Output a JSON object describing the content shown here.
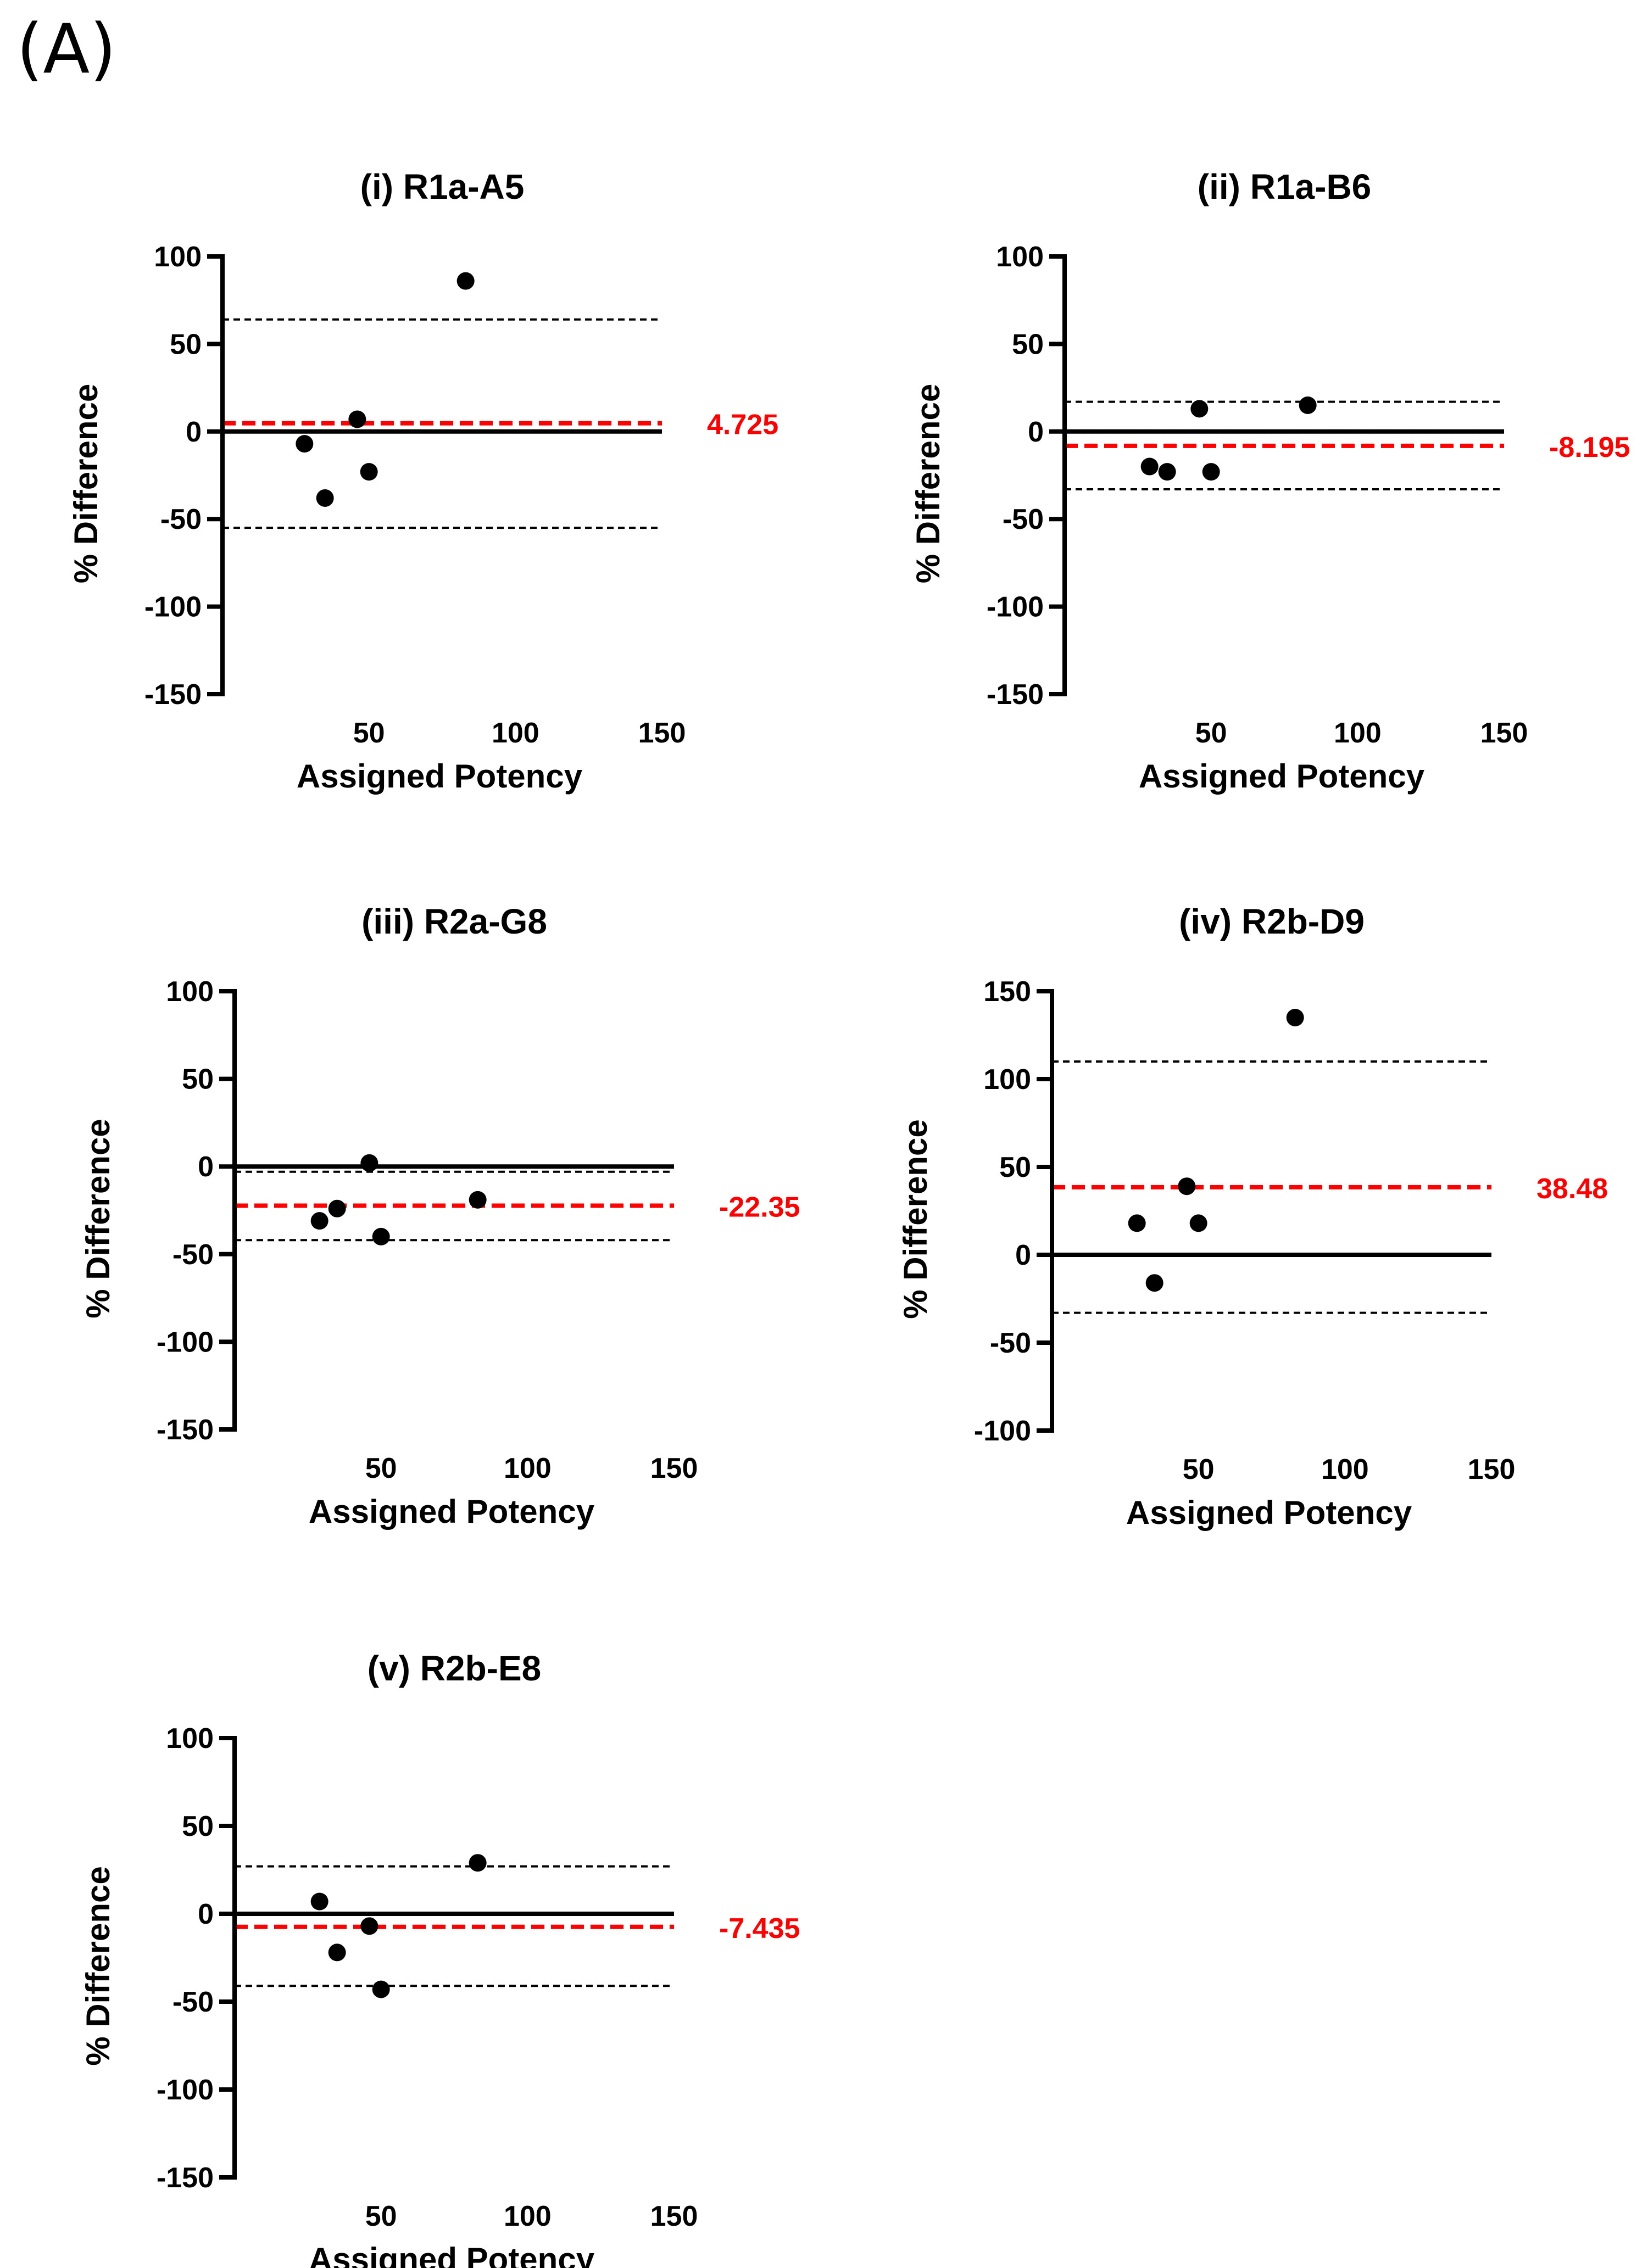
{
  "figure": {
    "panel_label": "(A)"
  },
  "chart_data": [
    {
      "type": "scatter",
      "title": "(i) R1a-A5",
      "xlabel": "Assigned Potency",
      "ylabel": "% Difference",
      "xlim": [
        0,
        150
      ],
      "ylim": [
        -150,
        100
      ],
      "xticks": [
        50,
        100,
        150
      ],
      "xtick_labels": [
        "50",
        "100",
        "150"
      ],
      "yticks": [
        100,
        50,
        0,
        -50,
        -100,
        -150
      ],
      "ytick_labels": [
        "100",
        "50",
        "0",
        "-50",
        "-100",
        "-150"
      ],
      "points": [
        {
          "x": 28,
          "y": -7
        },
        {
          "x": 35,
          "y": -38
        },
        {
          "x": 46,
          "y": 7
        },
        {
          "x": 50,
          "y": -23
        },
        {
          "x": 83,
          "y": 86
        }
      ],
      "bias": 4.725,
      "bias_label": "4.725",
      "loa_upper": 64,
      "loa_lower": -55,
      "colors": {
        "bias": "#ff0000",
        "points": "#000000",
        "limits": "#000000"
      }
    },
    {
      "type": "scatter",
      "title": "(ii) R1a-B6",
      "xlabel": "Assigned Potency",
      "ylabel": "% Difference",
      "xlim": [
        0,
        150
      ],
      "ylim": [
        -150,
        100
      ],
      "xticks": [
        50,
        100,
        150
      ],
      "xtick_labels": [
        "50",
        "100",
        "150"
      ],
      "yticks": [
        100,
        50,
        0,
        -50,
        -100,
        -150
      ],
      "ytick_labels": [
        "100",
        "50",
        "0",
        "-50",
        "-100",
        "-150"
      ],
      "points": [
        {
          "x": 29,
          "y": -20
        },
        {
          "x": 35,
          "y": -23
        },
        {
          "x": 46,
          "y": 13
        },
        {
          "x": 50,
          "y": -23
        },
        {
          "x": 83,
          "y": 15
        }
      ],
      "bias": -8.195,
      "bias_label": "-8.195",
      "loa_upper": 17,
      "loa_lower": -33,
      "colors": {
        "bias": "#ff0000",
        "points": "#000000",
        "limits": "#000000"
      }
    },
    {
      "type": "scatter",
      "title": "(iii) R2a-G8",
      "xlabel": "Assigned Potency",
      "ylabel": "% Difference",
      "xlim": [
        0,
        150
      ],
      "ylim": [
        -150,
        100
      ],
      "xticks": [
        50,
        100,
        150
      ],
      "xtick_labels": [
        "50",
        "100",
        "150"
      ],
      "yticks": [
        100,
        50,
        0,
        -50,
        -100,
        -150
      ],
      "ytick_labels": [
        "100",
        "50",
        "0",
        "-50",
        "-100",
        "-150"
      ],
      "points": [
        {
          "x": 29,
          "y": -31
        },
        {
          "x": 35,
          "y": -24
        },
        {
          "x": 46,
          "y": 2
        },
        {
          "x": 50,
          "y": -40
        },
        {
          "x": 83,
          "y": -19
        }
      ],
      "bias": -22.35,
      "bias_label": "-22.35",
      "loa_upper": -3,
      "loa_lower": -42,
      "colors": {
        "bias": "#ff0000",
        "points": "#000000",
        "limits": "#000000"
      }
    },
    {
      "type": "scatter",
      "title": "(iv) R2b-D9",
      "xlabel": "Assigned Potency",
      "ylabel": "% Difference",
      "xlim": [
        0,
        150
      ],
      "ylim": [
        -100,
        150
      ],
      "xticks": [
        50,
        100,
        150
      ],
      "xtick_labels": [
        "50",
        "100",
        "150"
      ],
      "yticks": [
        150,
        100,
        50,
        0,
        -50,
        -100
      ],
      "ytick_labels": [
        "150",
        "100",
        "50",
        "0",
        "-50",
        "-100"
      ],
      "points": [
        {
          "x": 29,
          "y": 18
        },
        {
          "x": 35,
          "y": -16
        },
        {
          "x": 46,
          "y": 39
        },
        {
          "x": 50,
          "y": 18
        },
        {
          "x": 83,
          "y": 135
        }
      ],
      "bias": 38.48,
      "bias_label": "38.48",
      "loa_upper": 110,
      "loa_lower": -33,
      "colors": {
        "bias": "#ff0000",
        "points": "#000000",
        "limits": "#000000"
      }
    },
    {
      "type": "scatter",
      "title": "(v) R2b-E8",
      "xlabel": "Assigned Potency",
      "ylabel": "% Difference",
      "xlim": [
        0,
        150
      ],
      "ylim": [
        -150,
        100
      ],
      "xticks": [
        50,
        100,
        150
      ],
      "xtick_labels": [
        "50",
        "100",
        "150"
      ],
      "yticks": [
        100,
        50,
        0,
        -50,
        -100,
        -150
      ],
      "ytick_labels": [
        "100",
        "50",
        "0",
        "-50",
        "-100",
        "-150"
      ],
      "points": [
        {
          "x": 29,
          "y": 7
        },
        {
          "x": 35,
          "y": -22
        },
        {
          "x": 46,
          "y": -7
        },
        {
          "x": 50,
          "y": -43
        },
        {
          "x": 83,
          "y": 29
        }
      ],
      "bias": -7.435,
      "bias_label": "-7.435",
      "loa_upper": 27,
      "loa_lower": -41,
      "colors": {
        "bias": "#ff0000",
        "points": "#000000",
        "limits": "#000000"
      }
    }
  ]
}
